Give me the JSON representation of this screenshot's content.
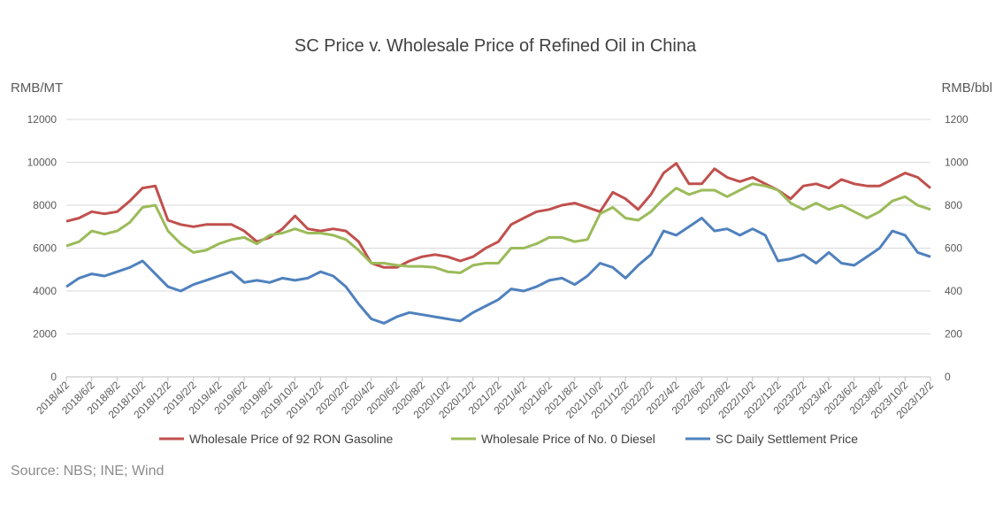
{
  "chart_data": {
    "type": "line",
    "title": "SC Price v. Wholesale Price of Refined Oil in China",
    "y_label": "RMB/MT",
    "y2_label": "RMB/bbl",
    "source": "Source: NBS; INE; Wind",
    "categories": [
      "2018/4/2",
      null,
      "2018/6/2",
      null,
      "2018/8/2",
      null,
      "2018/10/2",
      null,
      "2018/12/2",
      null,
      "2019/2/2",
      null,
      "2019/4/2",
      null,
      "2019/6/2",
      null,
      "2019/8/2",
      null,
      "2019/10/2",
      null,
      "2019/12/2",
      null,
      "2020/2/2",
      null,
      "2020/4/2",
      null,
      "2020/6/2",
      null,
      "2020/8/2",
      null,
      "2020/10/2",
      null,
      "2020/12/2",
      null,
      "2021/2/2",
      null,
      "2021/4/2",
      null,
      "2021/6/2",
      null,
      "2021/8/2",
      null,
      "2021/10/2",
      null,
      "2021/12/2",
      null,
      "2022/2/2",
      null,
      "2022/4/2",
      null,
      "2022/6/2",
      null,
      "2022/8/2",
      null,
      "2022/10/2",
      null,
      "2022/12/2",
      null,
      "2023/2/2",
      null,
      "2023/4/2",
      null,
      "2023/6/2",
      null,
      "2023/8/2",
      null,
      "2023/10/2",
      null,
      "2023/12/2"
    ],
    "series": [
      {
        "name": "Wholesale Price of 92 RON Gasoline",
        "color": "#c0504d",
        "axis": "y",
        "values": [
          7250,
          7400,
          7700,
          7600,
          7700,
          8200,
          8800,
          8900,
          7300,
          7100,
          7000,
          7100,
          7100,
          7100,
          6800,
          6300,
          6500,
          6900,
          7500,
          6900,
          6800,
          6900,
          6800,
          6300,
          5300,
          5100,
          5100,
          5400,
          5600,
          5700,
          5600,
          5400,
          5600,
          6000,
          6300,
          7100,
          7400,
          7700,
          7800,
          8000,
          8100,
          7900,
          7700,
          8600,
          8300,
          7800,
          8500,
          9500,
          9950,
          9000,
          9000,
          9700,
          9300,
          9100,
          9300,
          9000,
          8700,
          8300,
          8900,
          9000,
          8800,
          9200,
          9000,
          8900,
          8900,
          9200,
          9500,
          9300,
          8800
        ]
      },
      {
        "name": "Wholesale Price of No. 0 Diesel",
        "color": "#9bbb59",
        "axis": "y",
        "values": [
          6100,
          6300,
          6800,
          6650,
          6800,
          7200,
          7900,
          8000,
          6800,
          6200,
          5800,
          5900,
          6200,
          6400,
          6500,
          6200,
          6600,
          6700,
          6900,
          6700,
          6700,
          6600,
          6400,
          5900,
          5300,
          5300,
          5200,
          5150,
          5150,
          5100,
          4900,
          4850,
          5200,
          5300,
          5300,
          6000,
          6000,
          6200,
          6500,
          6500,
          6300,
          6400,
          7600,
          7900,
          7400,
          7300,
          7700,
          8300,
          8800,
          8500,
          8700,
          8700,
          8400,
          8700,
          9000,
          8900,
          8700,
          8100,
          7800,
          8100,
          7800,
          8000,
          7700,
          7400,
          7700,
          8200,
          8400,
          8000,
          7800
        ]
      },
      {
        "name": "SC Daily Settlement Price",
        "color": "#4f81bd",
        "axis": "y2",
        "values": [
          420,
          460,
          480,
          470,
          490,
          510,
          540,
          480,
          420,
          400,
          430,
          450,
          470,
          490,
          440,
          450,
          440,
          460,
          450,
          460,
          490,
          470,
          420,
          340,
          270,
          250,
          280,
          300,
          290,
          280,
          270,
          260,
          300,
          330,
          360,
          410,
          400,
          420,
          450,
          460,
          430,
          470,
          530,
          510,
          460,
          520,
          570,
          680,
          660,
          700,
          740,
          680,
          690,
          660,
          690,
          660,
          540,
          550,
          570,
          530,
          580,
          530,
          520,
          560,
          600,
          680,
          660,
          580,
          560
        ]
      }
    ],
    "ylim": [
      0,
      12000
    ],
    "yticks": [
      0,
      2000,
      4000,
      6000,
      8000,
      10000,
      12000
    ],
    "y2lim": [
      0,
      1200
    ],
    "y2ticks": [
      0,
      200,
      400,
      600,
      800,
      1000,
      1200
    ],
    "grid": true,
    "legend": "bottom"
  }
}
